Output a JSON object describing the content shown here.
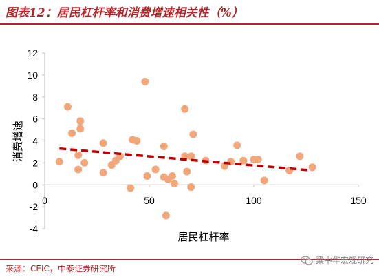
{
  "header": {
    "figure_title": "图表12：居民杠杆率和消费增速相关性（%）"
  },
  "footer": {
    "source": "来源：CEIC，中泰证券研究所",
    "watermark_text": "粱中华宏观研究",
    "watermark_icon": "wechat-icon"
  },
  "colors": {
    "title": "#b3262b",
    "points": "#f2a77b",
    "trendline": "#c00000",
    "axis": "#bfbfbf",
    "text": "#000000"
  },
  "chart_data": {
    "type": "scatter",
    "title": "",
    "xlabel": "居民杠杆率",
    "ylabel": "消费增速",
    "xlim": [
      0,
      150
    ],
    "ylim": [
      -4,
      12
    ],
    "xticks": [
      "0",
      "50",
      "100",
      "150"
    ],
    "yticks": [
      "12",
      "10",
      "8",
      "6",
      "4",
      "2",
      "0",
      "-2",
      "-4"
    ],
    "grid": false,
    "legend": "none",
    "points": [
      [
        7,
        2.1
      ],
      [
        11,
        7.1
      ],
      [
        13,
        4.7
      ],
      [
        16,
        1.4
      ],
      [
        16,
        2.7
      ],
      [
        17,
        5.8
      ],
      [
        17,
        5.1
      ],
      [
        19,
        2.0
      ],
      [
        28,
        3.8
      ],
      [
        28,
        1.1
      ],
      [
        32,
        1.8
      ],
      [
        34,
        2.2
      ],
      [
        36,
        2.6
      ],
      [
        41,
        -0.3
      ],
      [
        42,
        4.1
      ],
      [
        44,
        4.0
      ],
      [
        48,
        9.4
      ],
      [
        49,
        0.8
      ],
      [
        53,
        1.4
      ],
      [
        57,
        3.5
      ],
      [
        57,
        0.7
      ],
      [
        58,
        -2.8
      ],
      [
        59,
        0.5
      ],
      [
        61,
        0.8
      ],
      [
        62,
        0.1
      ],
      [
        67,
        6.9
      ],
      [
        67,
        2.6
      ],
      [
        68,
        1.2
      ],
      [
        70,
        2.6
      ],
      [
        71,
        4.6
      ],
      [
        70,
        -0.2
      ],
      [
        77,
        2.2
      ],
      [
        86,
        1.7
      ],
      [
        89,
        2.1
      ],
      [
        92,
        3.6
      ],
      [
        95,
        2.2
      ],
      [
        100,
        2.3
      ],
      [
        102,
        2.3
      ],
      [
        105,
        0.4
      ],
      [
        117,
        1.3
      ],
      [
        122,
        2.6
      ],
      [
        128,
        1.6
      ]
    ],
    "trendline": {
      "style": "dashed",
      "x": [
        7,
        128
      ],
      "y": [
        3.3,
        1.3
      ]
    }
  }
}
